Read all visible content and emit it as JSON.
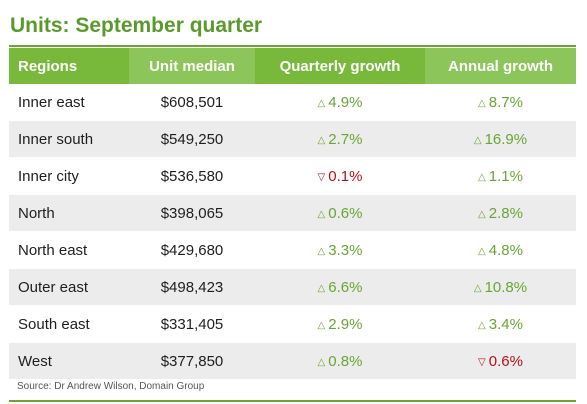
{
  "title": "Units: September quarter",
  "source": "Source: Dr Andrew Wilson, Domain Group",
  "colors": {
    "title_green": "#5a9a2c",
    "header_dark": "#78b83a",
    "header_light": "#8cc559",
    "up": "#6aa533",
    "down": "#b3121c",
    "row_alt": "#ececec"
  },
  "chart_data": {
    "type": "table",
    "title": "Units: September quarter",
    "columns": [
      "Regions",
      "Unit median",
      "Quarterly growth",
      "Annual growth"
    ],
    "rows": [
      {
        "region": "Inner east",
        "median": "$608,501",
        "quarterly": "4.9%",
        "quarterly_dir": "up",
        "annual": "8.7%",
        "annual_dir": "up"
      },
      {
        "region": "Inner south",
        "median": "$549,250",
        "quarterly": "2.7%",
        "quarterly_dir": "up",
        "annual": "16.9%",
        "annual_dir": "up"
      },
      {
        "region": "Inner city",
        "median": "$536,580",
        "quarterly": "0.1%",
        "quarterly_dir": "down",
        "annual": "1.1%",
        "annual_dir": "up"
      },
      {
        "region": "North",
        "median": "$398,065",
        "quarterly": "0.6%",
        "quarterly_dir": "up",
        "annual": "2.8%",
        "annual_dir": "up"
      },
      {
        "region": "North east",
        "median": "$429,680",
        "quarterly": "3.3%",
        "quarterly_dir": "up",
        "annual": "4.8%",
        "annual_dir": "up"
      },
      {
        "region": "Outer east",
        "median": "$498,423",
        "quarterly": "6.6%",
        "quarterly_dir": "up",
        "annual": "10.8%",
        "annual_dir": "up"
      },
      {
        "region": "South east",
        "median": "$331,405",
        "quarterly": "2.9%",
        "quarterly_dir": "up",
        "annual": "3.4%",
        "annual_dir": "up"
      },
      {
        "region": "West",
        "median": "$377,850",
        "quarterly": "0.8%",
        "quarterly_dir": "up",
        "annual": "0.6%",
        "annual_dir": "down"
      }
    ]
  }
}
